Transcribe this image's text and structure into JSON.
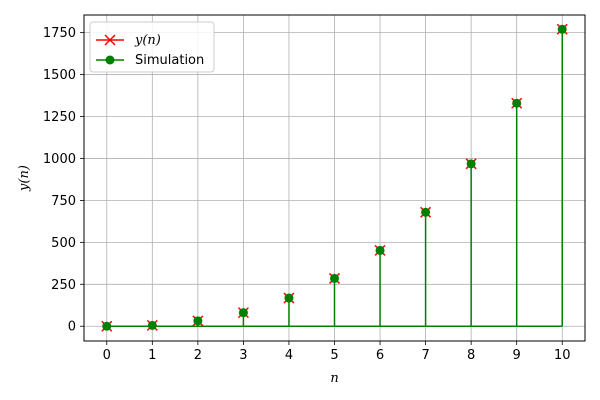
{
  "chart_data": {
    "type": "stem",
    "xlabel": "n",
    "ylabel": "y(n)",
    "x": [
      0,
      1,
      2,
      3,
      4,
      5,
      6,
      7,
      8,
      9,
      10
    ],
    "xlim": [
      -0.5,
      10.5
    ],
    "ylim": [
      -88,
      1855
    ],
    "xticks": [
      0,
      1,
      2,
      3,
      4,
      5,
      6,
      7,
      8,
      9,
      10
    ],
    "yticks": [
      0,
      250,
      500,
      750,
      1000,
      1250,
      1500,
      1750
    ],
    "grid": true,
    "legend_position": "top-left",
    "series": [
      {
        "name": "y(n)",
        "marker": "x",
        "color": "#ff0000",
        "values": [
          0,
          5,
          32,
          81,
          168,
          285,
          452,
          679,
          968,
          1329,
          1770
        ]
      },
      {
        "name": "Simulation",
        "marker": "o",
        "color": "#008000",
        "values": [
          0,
          5,
          32,
          81,
          168,
          285,
          452,
          679,
          968,
          1329,
          1770
        ]
      }
    ]
  }
}
